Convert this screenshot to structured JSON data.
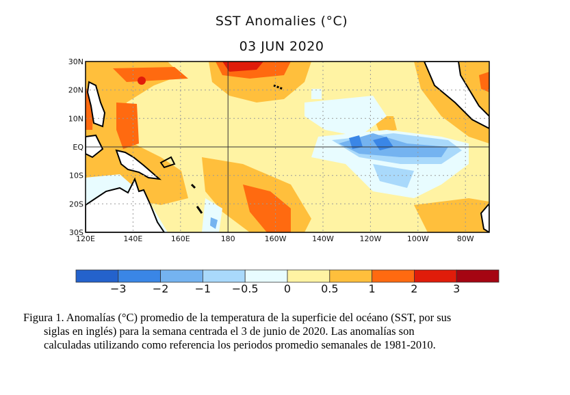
{
  "title": "SST Anomalies (°C)",
  "date": "03 JUN 2020",
  "map": {
    "lat_ticks": [
      "30N",
      "20N",
      "10N",
      "EQ",
      "10S",
      "20S",
      "30S"
    ],
    "lon_ticks": [
      "120E",
      "140E",
      "160E",
      "180",
      "160W",
      "140W",
      "120W",
      "100W",
      "80W"
    ],
    "extent": {
      "lon": [
        "120E",
        "70W"
      ],
      "lat": [
        "30S",
        "30N"
      ]
    },
    "grid": "dotted",
    "reference_lines": [
      "EQ",
      "180"
    ]
  },
  "colorbar": {
    "colors": [
      "#2462cc",
      "#3a86e6",
      "#74b3f0",
      "#a9d9fb",
      "#e8fcff",
      "#fff3a3",
      "#ffbf3c",
      "#ff6a10",
      "#e01c0a",
      "#a50512"
    ],
    "labels": [
      "−3",
      "−2",
      "−1",
      "−0.5",
      "0",
      "0.5",
      "1",
      "2",
      "3"
    ]
  },
  "caption": [
    "Figura 1. Anomalías (°C) promedio de la temperatura de la superficie del océano (SST, por sus",
    "siglas en inglés) para la semana centrada el 3 de junio de 2020. Las anomalías son",
    "calculadas utilizando como referencia los periodos promedio semanales de 1981-2010."
  ]
}
